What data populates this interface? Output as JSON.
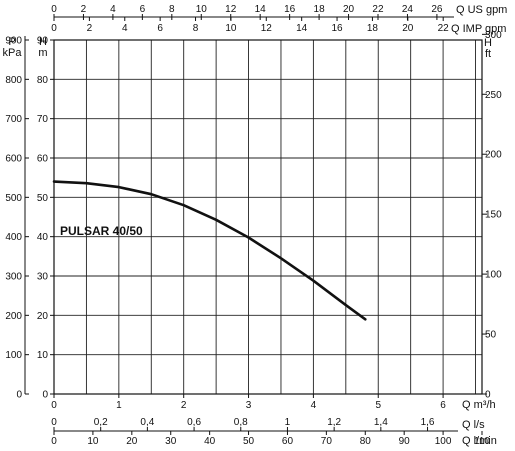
{
  "chart_data": {
    "type": "line",
    "title": "",
    "series": [
      {
        "name": "PULSAR 40/50",
        "x": [
          0,
          0.5,
          1,
          1.5,
          2,
          2.5,
          3,
          3.5,
          4,
          4.5,
          4.8
        ],
        "y": [
          54,
          53.6,
          52.6,
          50.8,
          48.0,
          44.3,
          39.8,
          34.5,
          28.8,
          22.6,
          19.0
        ]
      }
    ],
    "color": "#111111",
    "grid": true,
    "axes": {
      "x_m3h": {
        "unit": "Q m³/h",
        "range": [
          0,
          6.6
        ],
        "ticks": [
          0,
          1,
          2,
          3,
          4,
          5,
          6
        ],
        "labels": [
          "0",
          "1",
          "2",
          "3",
          "4",
          "5",
          "6"
        ]
      },
      "x_ls": {
        "unit": "Q l/s",
        "ticks": [
          0,
          0.2,
          0.4,
          0.6,
          0.8,
          1,
          1.2,
          1.4,
          1.6
        ],
        "labels": [
          "0",
          "0,2",
          "0,4",
          "0,6",
          "0,8",
          "1",
          "1,2",
          "1,4",
          "1,6"
        ]
      },
      "x_lmin": {
        "unit": "Q l/min",
        "ticks": [
          0,
          10,
          20,
          30,
          40,
          50,
          60,
          70,
          80,
          90,
          100,
          110
        ],
        "labels": [
          "0",
          "10",
          "20",
          "30",
          "40",
          "50",
          "60",
          "70",
          "80",
          "90",
          "100",
          "110"
        ]
      },
      "x_usgpm": {
        "unit": "Q US gpm",
        "ticks": [
          0,
          2,
          4,
          6,
          8,
          10,
          12,
          14,
          16,
          18,
          20,
          22,
          24,
          26
        ],
        "labels": [
          "0",
          "2",
          "4",
          "6",
          "8",
          "10",
          "12",
          "14",
          "16",
          "18",
          "20",
          "22",
          "24",
          "26"
        ]
      },
      "x_impgpm": {
        "unit": "Q IMP gpm",
        "ticks": [
          0,
          2,
          4,
          6,
          8,
          10,
          12,
          14,
          16,
          18,
          20,
          22
        ],
        "labels": [
          "0",
          "2",
          "4",
          "6",
          "8",
          "10",
          "12",
          "14",
          "16",
          "18",
          "20",
          "22"
        ]
      },
      "y_m": {
        "unit_top": "H",
        "unit_bottom": "m",
        "range": [
          0,
          90
        ],
        "ticks": [
          0,
          10,
          20,
          30,
          40,
          50,
          60,
          70,
          80,
          90
        ],
        "labels": [
          "0",
          "10",
          "20",
          "30",
          "40",
          "50",
          "60",
          "70",
          "80",
          "90"
        ]
      },
      "y_kpa": {
        "unit_top": "P",
        "unit_bottom": "kPa",
        "ticks": [
          0,
          100,
          200,
          300,
          400,
          500,
          600,
          700,
          800,
          900
        ],
        "labels": [
          "0",
          "100",
          "200",
          "300",
          "400",
          "500",
          "600",
          "700",
          "800",
          "900"
        ]
      },
      "y_ft": {
        "unit_top": "H",
        "unit_bottom": "ft",
        "ticks": [
          0,
          50,
          100,
          150,
          200,
          250,
          300
        ],
        "labels": [
          "0",
          "50",
          "100",
          "150",
          "200",
          "250",
          "300"
        ]
      }
    }
  }
}
